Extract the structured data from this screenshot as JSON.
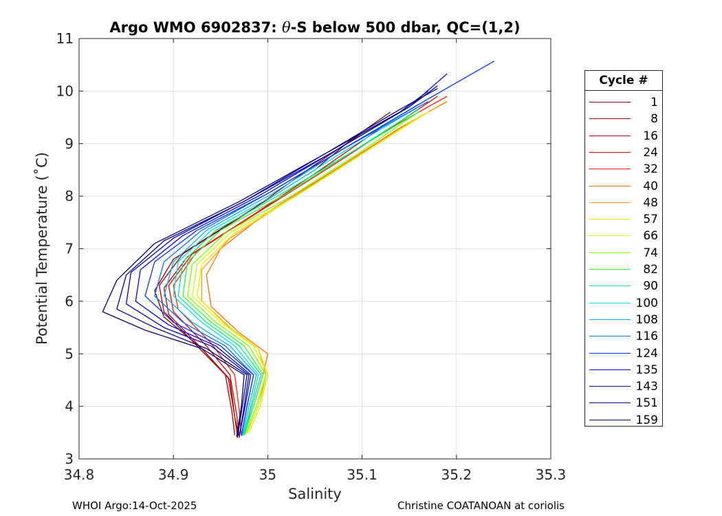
{
  "chart_data": {
    "type": "line",
    "title_parts": [
      "Argo WMO 6902837: ",
      "θ",
      "-S below 500 dbar,  QC=(1,2)"
    ],
    "xlabel": "Salinity",
    "ylabel": "Potential Temperature (˚C)",
    "xlim": [
      34.8,
      35.3
    ],
    "ylim": [
      3,
      11
    ],
    "xticks": [
      34.8,
      34.9,
      35,
      35.1,
      35.2,
      35.3
    ],
    "xtick_labels": [
      "34.8",
      "34.9",
      "35",
      "35.1",
      "35.2",
      "35.3"
    ],
    "yticks": [
      3,
      4,
      5,
      6,
      7,
      8,
      9,
      10,
      11
    ],
    "ytick_labels": [
      "3",
      "4",
      "5",
      "6",
      "7",
      "8",
      "9",
      "10",
      "11"
    ],
    "grid": true,
    "legend_title": "Cycle #",
    "series": [
      {
        "name": "1",
        "color": "#800000",
        "values": [
          [
            34.97,
            3.4
          ],
          [
            34.965,
            3.8
          ],
          [
            34.96,
            4.5
          ],
          [
            34.93,
            5.1
          ],
          [
            34.89,
            5.7
          ],
          [
            34.88,
            6.2
          ],
          [
            34.9,
            6.8
          ],
          [
            34.97,
            7.6
          ],
          [
            35.05,
            8.5
          ],
          [
            35.09,
            9.1
          ],
          [
            35.13,
            9.6
          ]
        ]
      },
      {
        "name": "8",
        "color": "#9b0000",
        "values": [
          [
            34.965,
            3.45
          ],
          [
            34.962,
            3.9
          ],
          [
            34.955,
            4.6
          ],
          [
            34.925,
            5.15
          ],
          [
            34.89,
            5.8
          ],
          [
            34.885,
            6.3
          ],
          [
            34.91,
            6.9
          ],
          [
            34.98,
            7.7
          ],
          [
            35.05,
            8.6
          ],
          [
            35.1,
            9.2
          ],
          [
            35.15,
            9.7
          ]
        ]
      },
      {
        "name": "16",
        "color": "#c00000",
        "values": [
          [
            34.968,
            3.4
          ],
          [
            34.965,
            3.8
          ],
          [
            34.958,
            4.55
          ],
          [
            34.93,
            5.1
          ],
          [
            34.895,
            5.75
          ],
          [
            34.89,
            6.25
          ],
          [
            34.915,
            6.85
          ],
          [
            34.985,
            7.65
          ],
          [
            35.06,
            8.55
          ],
          [
            35.12,
            9.3
          ],
          [
            35.17,
            9.8
          ]
        ]
      },
      {
        "name": "24",
        "color": "#e00000",
        "values": [
          [
            34.97,
            3.42
          ],
          [
            34.967,
            3.85
          ],
          [
            34.96,
            4.6
          ],
          [
            34.935,
            5.15
          ],
          [
            34.9,
            5.8
          ],
          [
            34.895,
            6.3
          ],
          [
            34.92,
            6.9
          ],
          [
            34.99,
            7.7
          ],
          [
            35.07,
            8.6
          ],
          [
            35.13,
            9.3
          ],
          [
            35.18,
            9.9
          ]
        ]
      },
      {
        "name": "32",
        "color": "#ff2000",
        "values": [
          [
            34.972,
            3.45
          ],
          [
            34.97,
            3.9
          ],
          [
            34.965,
            4.6
          ],
          [
            34.94,
            5.2
          ],
          [
            34.905,
            5.85
          ],
          [
            34.9,
            6.3
          ],
          [
            34.925,
            6.95
          ],
          [
            34.995,
            7.75
          ],
          [
            35.07,
            8.6
          ],
          [
            35.13,
            9.3
          ],
          [
            35.19,
            9.9
          ]
        ]
      },
      {
        "name": "40",
        "color": "#ff7000",
        "values": [
          [
            34.975,
            3.5
          ],
          [
            34.985,
            4.0
          ],
          [
            34.995,
            4.6
          ],
          [
            35.0,
            5.0
          ],
          [
            34.97,
            5.4
          ],
          [
            34.94,
            5.9
          ],
          [
            34.935,
            6.5
          ],
          [
            34.95,
            7.0
          ],
          [
            35.0,
            7.7
          ],
          [
            35.08,
            8.6
          ],
          [
            35.14,
            9.3
          ],
          [
            35.19,
            9.8
          ]
        ]
      },
      {
        "name": "48",
        "color": "#ffa000",
        "values": [
          [
            34.978,
            3.5
          ],
          [
            34.99,
            4.0
          ],
          [
            34.998,
            4.6
          ],
          [
            34.99,
            5.1
          ],
          [
            34.96,
            5.5
          ],
          [
            34.93,
            6.0
          ],
          [
            34.93,
            6.6
          ],
          [
            34.96,
            7.2
          ],
          [
            35.02,
            7.9
          ],
          [
            35.09,
            8.7
          ],
          [
            35.15,
            9.4
          ],
          [
            35.18,
            9.7
          ]
        ]
      },
      {
        "name": "57",
        "color": "#ffe000",
        "values": [
          [
            34.98,
            3.5
          ],
          [
            34.992,
            4.0
          ],
          [
            35.0,
            4.6
          ],
          [
            34.99,
            5.1
          ],
          [
            34.955,
            5.55
          ],
          [
            34.925,
            6.1
          ],
          [
            34.93,
            6.7
          ],
          [
            34.965,
            7.3
          ],
          [
            35.03,
            8.0
          ],
          [
            35.1,
            8.8
          ],
          [
            35.16,
            9.5
          ]
        ]
      },
      {
        "name": "66",
        "color": "#c8ff00",
        "values": [
          [
            34.978,
            3.48
          ],
          [
            34.99,
            4.0
          ],
          [
            35.0,
            4.6
          ],
          [
            34.985,
            5.15
          ],
          [
            34.95,
            5.6
          ],
          [
            34.92,
            6.1
          ],
          [
            34.925,
            6.7
          ],
          [
            34.96,
            7.3
          ],
          [
            35.03,
            8.0
          ],
          [
            35.1,
            8.8
          ],
          [
            35.17,
            9.6
          ]
        ]
      },
      {
        "name": "74",
        "color": "#80ff00",
        "values": [
          [
            34.976,
            3.46
          ],
          [
            34.988,
            4.0
          ],
          [
            34.998,
            4.6
          ],
          [
            34.98,
            5.15
          ],
          [
            34.945,
            5.6
          ],
          [
            34.915,
            6.1
          ],
          [
            34.92,
            6.7
          ],
          [
            34.955,
            7.3
          ],
          [
            35.025,
            8.0
          ],
          [
            35.095,
            8.8
          ],
          [
            35.16,
            9.6
          ]
        ]
      },
      {
        "name": "82",
        "color": "#30ff30",
        "values": [
          [
            34.975,
            3.45
          ],
          [
            34.985,
            4.0
          ],
          [
            34.995,
            4.6
          ],
          [
            34.975,
            5.15
          ],
          [
            34.94,
            5.6
          ],
          [
            34.91,
            6.1
          ],
          [
            34.915,
            6.75
          ],
          [
            34.95,
            7.35
          ],
          [
            35.02,
            8.05
          ],
          [
            35.09,
            8.85
          ],
          [
            35.16,
            9.6
          ]
        ]
      },
      {
        "name": "90",
        "color": "#00e890",
        "values": [
          [
            34.975,
            3.45
          ],
          [
            34.983,
            4.0
          ],
          [
            34.993,
            4.6
          ],
          [
            34.97,
            5.15
          ],
          [
            34.935,
            5.6
          ],
          [
            34.905,
            6.1
          ],
          [
            34.91,
            6.75
          ],
          [
            34.945,
            7.35
          ],
          [
            35.015,
            8.05
          ],
          [
            35.09,
            8.85
          ],
          [
            35.16,
            9.65
          ]
        ]
      },
      {
        "name": "100",
        "color": "#00e0e0",
        "values": [
          [
            34.974,
            3.45
          ],
          [
            34.982,
            4.0
          ],
          [
            34.99,
            4.6
          ],
          [
            34.965,
            5.15
          ],
          [
            34.93,
            5.6
          ],
          [
            34.9,
            6.1
          ],
          [
            34.905,
            6.75
          ],
          [
            34.94,
            7.35
          ],
          [
            35.01,
            8.05
          ],
          [
            35.085,
            8.9
          ],
          [
            35.16,
            9.7
          ]
        ]
      },
      {
        "name": "108",
        "color": "#00b0ff",
        "values": [
          [
            34.973,
            3.44
          ],
          [
            34.98,
            4.0
          ],
          [
            34.988,
            4.6
          ],
          [
            34.96,
            5.15
          ],
          [
            34.92,
            5.6
          ],
          [
            34.89,
            6.1
          ],
          [
            34.9,
            6.75
          ],
          [
            34.935,
            7.35
          ],
          [
            35.005,
            8.05
          ],
          [
            35.08,
            8.9
          ],
          [
            35.16,
            9.75
          ]
        ]
      },
      {
        "name": "116",
        "color": "#0070ff",
        "values": [
          [
            34.972,
            3.44
          ],
          [
            34.978,
            4.0
          ],
          [
            34.985,
            4.6
          ],
          [
            34.955,
            5.15
          ],
          [
            34.91,
            5.6
          ],
          [
            34.88,
            6.1
          ],
          [
            34.89,
            6.75
          ],
          [
            34.93,
            7.35
          ],
          [
            35.0,
            8.05
          ],
          [
            35.08,
            8.9
          ],
          [
            35.17,
            9.8
          ]
        ]
      },
      {
        "name": "124",
        "color": "#0030ff",
        "values": [
          [
            34.972,
            3.44
          ],
          [
            34.978,
            4.0
          ],
          [
            34.985,
            4.6
          ],
          [
            34.95,
            5.15
          ],
          [
            34.9,
            5.6
          ],
          [
            34.87,
            6.1
          ],
          [
            34.88,
            6.75
          ],
          [
            34.925,
            7.35
          ],
          [
            35.0,
            8.05
          ],
          [
            35.08,
            8.9
          ],
          [
            35.17,
            9.85
          ],
          [
            35.24,
            10.57
          ]
        ]
      },
      {
        "name": "135",
        "color": "#0000f0",
        "values": [
          [
            34.97,
            3.44
          ],
          [
            34.976,
            4.0
          ],
          [
            34.982,
            4.6
          ],
          [
            34.945,
            5.15
          ],
          [
            34.895,
            5.55
          ],
          [
            34.86,
            6.0
          ],
          [
            34.865,
            6.6
          ],
          [
            34.91,
            7.25
          ],
          [
            34.99,
            8.0
          ],
          [
            35.07,
            8.85
          ],
          [
            35.15,
            9.7
          ],
          [
            35.19,
            10.33
          ]
        ]
      },
      {
        "name": "143",
        "color": "#0000c0",
        "values": [
          [
            34.97,
            3.44
          ],
          [
            34.975,
            4.0
          ],
          [
            34.98,
            4.6
          ],
          [
            34.94,
            5.15
          ],
          [
            34.89,
            5.5
          ],
          [
            34.85,
            5.95
          ],
          [
            34.855,
            6.55
          ],
          [
            34.9,
            7.2
          ],
          [
            34.98,
            7.95
          ],
          [
            35.07,
            8.85
          ],
          [
            35.15,
            9.7
          ],
          [
            35.18,
            10.1
          ]
        ]
      },
      {
        "name": "151",
        "color": "#000090",
        "values": [
          [
            34.968,
            3.42
          ],
          [
            34.973,
            4.0
          ],
          [
            34.978,
            4.6
          ],
          [
            34.935,
            5.1
          ],
          [
            34.88,
            5.5
          ],
          [
            34.84,
            5.85
          ],
          [
            34.85,
            6.5
          ],
          [
            34.89,
            7.15
          ],
          [
            34.975,
            7.9
          ],
          [
            35.06,
            8.8
          ],
          [
            35.14,
            9.65
          ],
          [
            35.18,
            10.05
          ]
        ]
      },
      {
        "name": "159",
        "color": "#000070",
        "values": [
          [
            34.967,
            3.42
          ],
          [
            34.972,
            4.0
          ],
          [
            34.975,
            4.6
          ],
          [
            34.93,
            5.1
          ],
          [
            34.87,
            5.45
          ],
          [
            34.825,
            5.8
          ],
          [
            34.84,
            6.4
          ],
          [
            34.88,
            7.1
          ],
          [
            34.97,
            7.9
          ],
          [
            35.055,
            8.75
          ],
          [
            35.14,
            9.6
          ],
          [
            35.17,
            10.0
          ]
        ]
      }
    ]
  },
  "footer": {
    "left": "WHOI Argo:14-Oct-2025",
    "right": "Christine COATANOAN at coriolis"
  }
}
